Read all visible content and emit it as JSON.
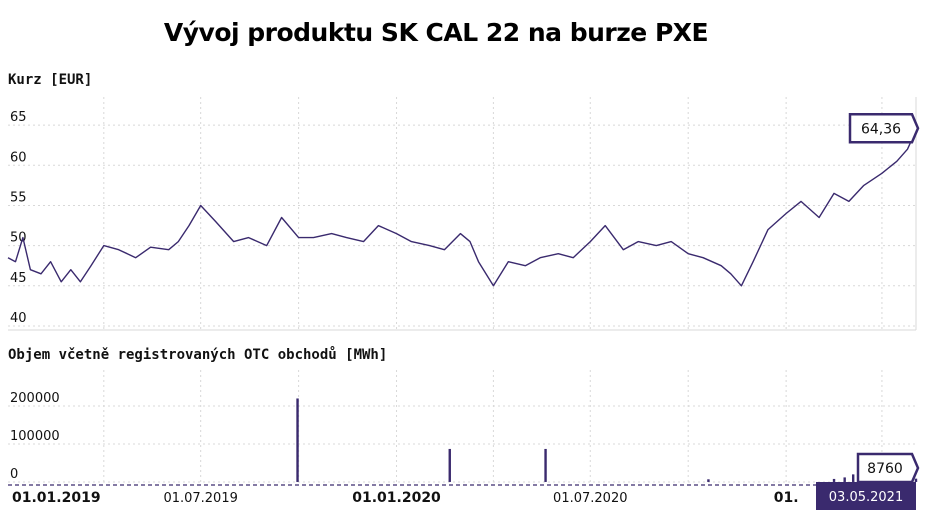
{
  "title": "Vývoj produktu SK CAL 22 na burze PXE",
  "colors": {
    "series": "#3a2a6e",
    "grid": "#d8d8d8",
    "current_bg": "#3a2a6e"
  },
  "chart_data": [
    {
      "type": "line",
      "ylabel": "Kurz [EUR]",
      "yticks": [
        40,
        45,
        50,
        55,
        60,
        65
      ],
      "ylim": [
        39.5,
        68.5
      ],
      "xlim": [
        "2019-01-01",
        "2021-05-03"
      ],
      "series": [
        {
          "x": [
            "2019-01-01",
            "2019-01-08",
            "2019-01-15",
            "2019-01-22",
            "2019-02-01",
            "2019-02-10",
            "2019-02-20",
            "2019-03-01",
            "2019-03-10",
            "2019-03-20",
            "2019-04-01",
            "2019-04-15",
            "2019-05-01",
            "2019-05-15",
            "2019-06-01",
            "2019-06-10",
            "2019-06-20",
            "2019-07-01",
            "2019-07-15",
            "2019-08-01",
            "2019-08-15",
            "2019-09-01",
            "2019-09-15",
            "2019-10-01",
            "2019-10-15",
            "2019-11-01",
            "2019-11-15",
            "2019-12-01",
            "2019-12-15",
            "2020-01-01",
            "2020-01-15",
            "2020-02-01",
            "2020-02-15",
            "2020-03-01",
            "2020-03-10",
            "2020-03-18",
            "2020-04-01",
            "2020-04-15",
            "2020-05-01",
            "2020-05-15",
            "2020-06-01",
            "2020-06-15",
            "2020-07-01",
            "2020-07-15",
            "2020-08-01",
            "2020-08-15",
            "2020-09-01",
            "2020-09-15",
            "2020-10-01",
            "2020-10-15",
            "2020-11-01",
            "2020-11-10",
            "2020-11-20",
            "2020-12-01",
            "2020-12-15",
            "2021-01-01",
            "2021-01-15",
            "2021-02-01",
            "2021-02-15",
            "2021-03-01",
            "2021-03-15",
            "2021-04-01",
            "2021-04-15",
            "2021-04-25",
            "2021-05-03"
          ],
          "y": [
            48.5,
            48.0,
            51.0,
            47.0,
            46.5,
            48.0,
            45.5,
            47.0,
            45.5,
            47.5,
            50.0,
            49.5,
            48.5,
            49.8,
            49.5,
            50.5,
            52.5,
            55.0,
            53.0,
            50.5,
            51.0,
            50.0,
            53.5,
            51.0,
            51.0,
            51.5,
            51.0,
            50.5,
            52.5,
            51.5,
            50.5,
            50.0,
            49.5,
            51.5,
            50.5,
            48.0,
            45.0,
            48.0,
            47.5,
            48.5,
            49.0,
            48.5,
            50.5,
            52.5,
            49.5,
            50.5,
            50.0,
            50.5,
            49.0,
            48.5,
            47.5,
            46.5,
            45.0,
            48.0,
            52.0,
            54.0,
            55.5,
            53.5,
            56.5,
            55.5,
            57.5,
            59.0,
            60.5,
            62.0,
            64.36
          ]
        }
      ],
      "callout": {
        "x": "2021-05-03",
        "value": "64,36"
      }
    },
    {
      "type": "bar",
      "ylabel": "Objem včetně registrovaných OTC obchodů [MWh]",
      "yticks": [
        0,
        100000,
        200000
      ],
      "ylim": [
        -8000,
        295000
      ],
      "xlim": [
        "2019-01-01",
        "2021-05-03"
      ],
      "bars": [
        {
          "x": "2019-09-30",
          "y": 220000
        },
        {
          "x": "2020-02-20",
          "y": 87000
        },
        {
          "x": "2020-05-20",
          "y": 87000
        },
        {
          "x": "2020-10-20",
          "y": 7000
        },
        {
          "x": "2021-02-15",
          "y": 8000
        },
        {
          "x": "2021-02-25",
          "y": 12000
        },
        {
          "x": "2021-03-05",
          "y": 20000
        },
        {
          "x": "2021-03-12",
          "y": 14000
        },
        {
          "x": "2021-03-18",
          "y": 55000
        },
        {
          "x": "2021-03-24",
          "y": 42000
        },
        {
          "x": "2021-03-28",
          "y": 18000
        },
        {
          "x": "2021-04-05",
          "y": 22000
        },
        {
          "x": "2021-04-12",
          "y": 35000
        },
        {
          "x": "2021-04-18",
          "y": 28000
        },
        {
          "x": "2021-04-25",
          "y": 30000
        },
        {
          "x": "2021-05-03",
          "y": 8760
        }
      ],
      "callout": {
        "x": "2021-05-03",
        "value": "8760"
      }
    }
  ],
  "x_axis": {
    "ticks": [
      {
        "date": "2019-01-01",
        "label": "01.01.2019",
        "major": true
      },
      {
        "date": "2019-07-01",
        "label": "01.07.2019",
        "major": false
      },
      {
        "date": "2020-01-01",
        "label": "01.01.2020",
        "major": true
      },
      {
        "date": "2020-07-01",
        "label": "01.07.2020",
        "major": false
      },
      {
        "date": "2021-01-01",
        "label": "01.",
        "major": true
      }
    ],
    "current_date": "03.05.2021"
  }
}
